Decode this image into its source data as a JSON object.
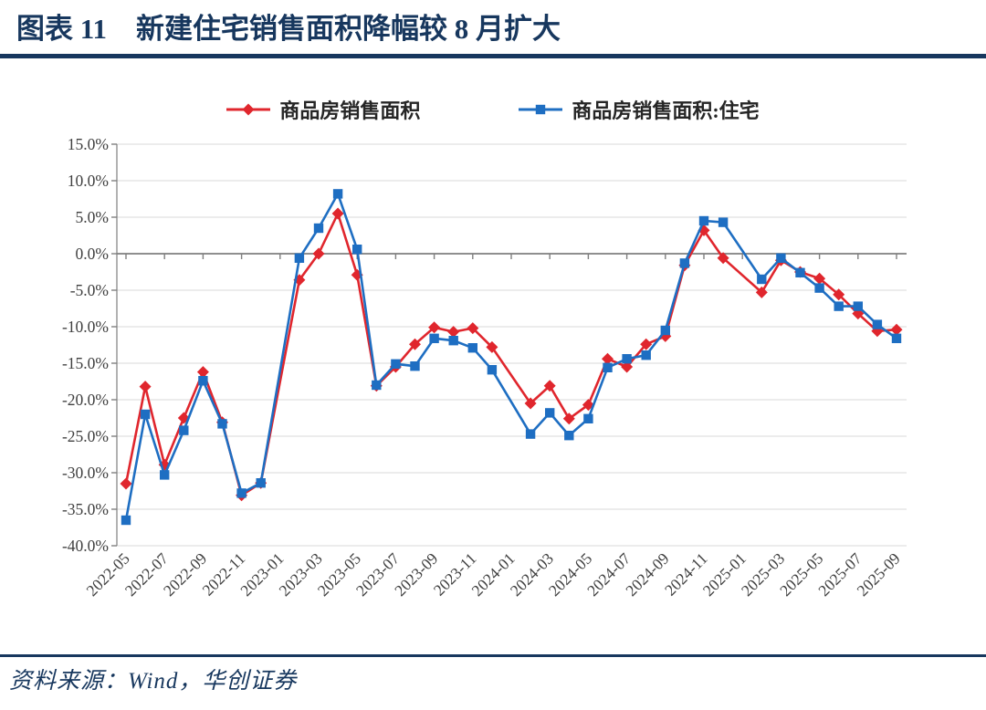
{
  "figure": {
    "label": "图表 11",
    "title": "新建住宅销售面积降幅较 8 月扩大",
    "source": "资料来源：Wind，华创证券"
  },
  "colors": {
    "accent_navy": "#17375e",
    "series_red": "#e0262d",
    "series_blue": "#1e6ec2",
    "gridline": "#dadada",
    "axis_gray": "#7f7f7f",
    "tick_label": "#3f3f3f"
  },
  "chart_data": {
    "type": "line",
    "title": "新建住宅销售面积降幅较 8 月扩大",
    "xlabel": "",
    "ylabel": "",
    "ylim": [
      -40,
      15
    ],
    "y_tick_step": 5,
    "grid": true,
    "legend_position": "top-center",
    "x_axis_type": "monthly date axis, labels every 2 months, January points absent (Jan-Feb combined)",
    "y_tick_labels": [
      "15.0%",
      "10.0%",
      "5.0%",
      "0.0%",
      "-5.0%",
      "-10.0%",
      "-15.0%",
      "-20.0%",
      "-25.0%",
      "-30.0%",
      "-35.0%",
      "-40.0%"
    ],
    "x_tick_labels": [
      "2022-05",
      "2022-07",
      "2022-09",
      "2022-11",
      "2023-01",
      "2023-03",
      "2023-05",
      "2023-07",
      "2023-09",
      "2023-11",
      "2024-01",
      "2024-03",
      "2024-05",
      "2024-07",
      "2024-09",
      "2024-11",
      "2025-01",
      "2025-03",
      "2025-05",
      "2025-07",
      "2025-09"
    ],
    "x": [
      "2022-05",
      "2022-06",
      "2022-07",
      "2022-08",
      "2022-09",
      "2022-10",
      "2022-11",
      "2022-12",
      "2023-02",
      "2023-03",
      "2023-04",
      "2023-05",
      "2023-06",
      "2023-07",
      "2023-08",
      "2023-09",
      "2023-10",
      "2023-11",
      "2023-12",
      "2024-02",
      "2024-03",
      "2024-04",
      "2024-05",
      "2024-06",
      "2024-07",
      "2024-08",
      "2024-09",
      "2024-10",
      "2024-11",
      "2024-12",
      "2025-02",
      "2025-03",
      "2025-04",
      "2025-05",
      "2025-06",
      "2025-07",
      "2025-08",
      "2025-09"
    ],
    "series": [
      {
        "name": "商品房销售面积",
        "unit": "% YoY",
        "color": "#e0262d",
        "marker": "diamond",
        "values": [
          -31.5,
          -18.2,
          -28.9,
          -22.5,
          -16.2,
          -23.1,
          -33.1,
          -31.4,
          -3.6,
          0.0,
          5.5,
          -2.9,
          -18.1,
          -15.5,
          -12.4,
          -10.1,
          -10.7,
          -10.2,
          -12.8,
          -20.5,
          -18.1,
          -22.6,
          -20.7,
          -14.4,
          -15.5,
          -12.4,
          -11.3,
          -1.6,
          3.2,
          -0.6,
          -5.3,
          -0.9,
          -2.5,
          -3.4,
          -5.6,
          -8.2,
          -10.6,
          -10.4
        ]
      },
      {
        "name": "商品房销售面积:住宅",
        "unit": "% YoY",
        "color": "#1e6ec2",
        "marker": "square",
        "values": [
          -36.5,
          -22.0,
          -30.3,
          -24.2,
          -17.4,
          -23.3,
          -32.8,
          -31.4,
          -0.6,
          3.5,
          8.2,
          0.6,
          -18.0,
          -15.1,
          -15.4,
          -11.6,
          -11.9,
          -12.9,
          -15.9,
          -24.7,
          -21.8,
          -24.9,
          -22.6,
          -15.6,
          -14.4,
          -13.9,
          -10.5,
          -1.3,
          4.5,
          4.3,
          -3.5,
          -0.6,
          -2.6,
          -4.7,
          -7.2,
          -7.2,
          -9.7,
          -11.6
        ]
      }
    ]
  }
}
